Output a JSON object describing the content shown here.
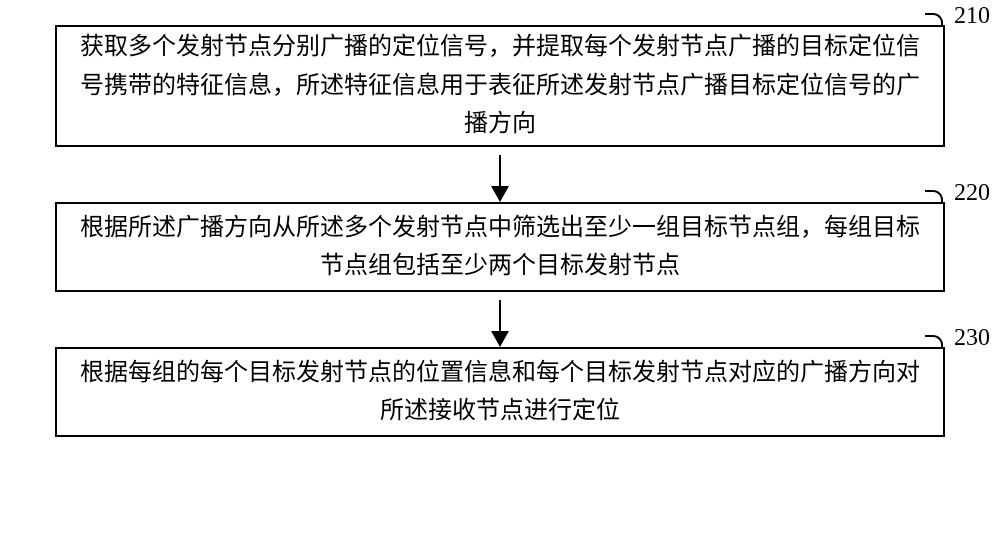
{
  "flowchart": {
    "type": "flowchart",
    "background_color": "#ffffff",
    "border_color": "#000000",
    "border_width": 2,
    "text_color": "#000000",
    "font_size": 24,
    "arrow_color": "#000000",
    "steps": [
      {
        "id": "210",
        "label": "210",
        "text": "获取多个发射节点分别广播的定位信号，并提取每个发射节点广播的目标定位信号携带的特征信息，所述特征信息用于表征所述发射节点广播目标定位信号的广播方向"
      },
      {
        "id": "220",
        "label": "220",
        "text": "根据所述广播方向从所述多个发射节点中筛选出至少一组目标节点组，每组目标节点组包括至少两个目标发射节点"
      },
      {
        "id": "230",
        "label": "230",
        "text": "根据每组的每个目标发射节点的位置信息和每个目标发射节点对应的广播方向对所述接收节点进行定位"
      }
    ]
  }
}
